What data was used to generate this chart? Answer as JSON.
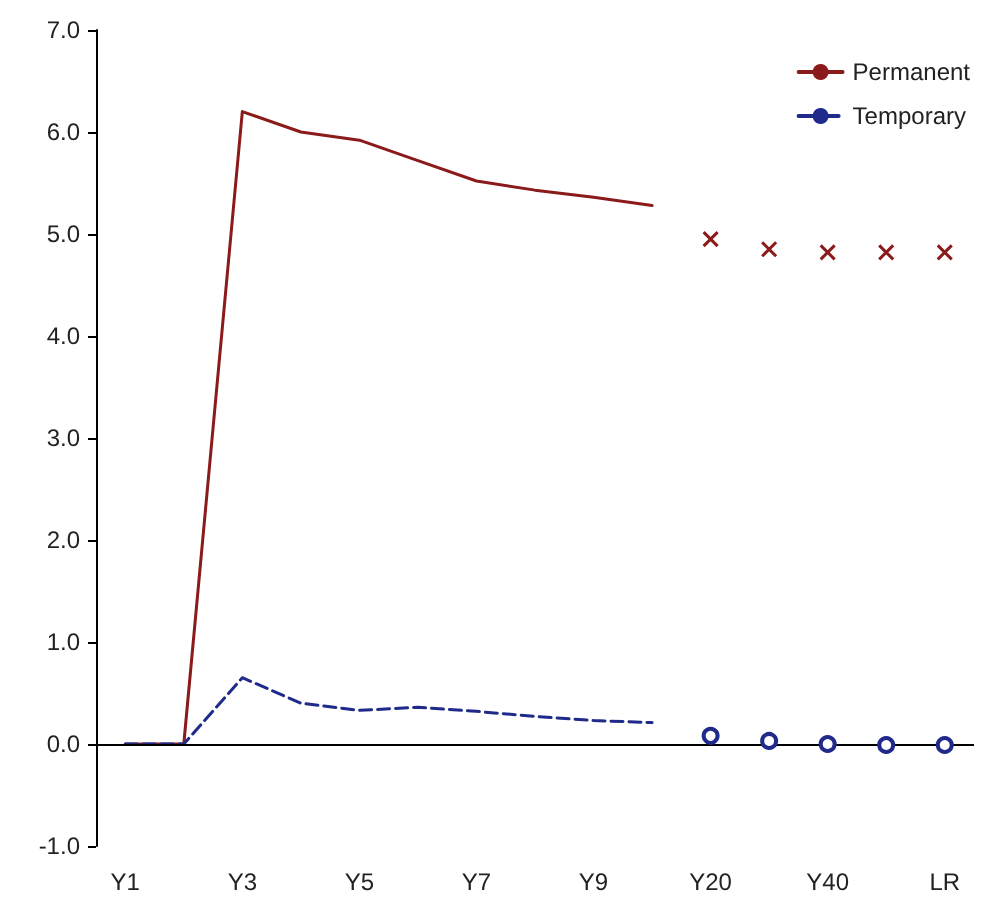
{
  "chart_data": {
    "type": "line",
    "categories": [
      "Y1",
      null,
      "Y3",
      null,
      "Y5",
      null,
      "Y7",
      null,
      "Y9",
      null,
      "Y20",
      null,
      "Y40",
      null,
      "LR"
    ],
    "series": [
      {
        "name": "Permanent",
        "color": "#8b1a1a",
        "line_style": "solid",
        "marker": "none",
        "values": [
          0,
          0,
          6.2,
          6.0,
          5.92,
          5.72,
          5.52,
          5.43,
          5.36,
          5.28,
          null,
          null,
          null,
          null,
          null
        ]
      },
      {
        "name": "Temporary",
        "color": "#1f2a8a",
        "line_style": "dashed",
        "marker": "none",
        "values": [
          0,
          0,
          0.65,
          0.4,
          0.33,
          0.36,
          0.32,
          0.27,
          0.23,
          0.21,
          null,
          null,
          null,
          null,
          null
        ]
      },
      {
        "type": "scatter",
        "color": "#8b1a1a",
        "marker": "cross",
        "values": [
          null,
          null,
          null,
          null,
          null,
          null,
          null,
          null,
          null,
          null,
          4.95,
          4.85,
          4.82,
          4.82,
          4.82
        ]
      },
      {
        "type": "scatter",
        "color": "#1f2a8a",
        "marker": "circle",
        "values": [
          null,
          null,
          null,
          null,
          null,
          null,
          null,
          null,
          null,
          null,
          0.08,
          0.03,
          0.0,
          -0.01,
          -0.01
        ]
      }
    ],
    "ylim": [
      -1,
      7
    ],
    "yticks": [
      {
        "value": -1,
        "label": "-1.0"
      },
      {
        "value": 0,
        "label": "0.0"
      },
      {
        "value": 1,
        "label": "1.0"
      },
      {
        "value": 2,
        "label": "2.0"
      },
      {
        "value": 3,
        "label": "3.0"
      },
      {
        "value": 4,
        "label": "4.0"
      },
      {
        "value": 5,
        "label": "5.0"
      },
      {
        "value": 6,
        "label": "6.0"
      },
      {
        "value": 7,
        "label": "7.0"
      }
    ],
    "ref_lines": [
      {
        "axis": "y",
        "value": 0,
        "color": "#000000",
        "line_style": "solid"
      }
    ],
    "grid": false,
    "legend": "top right"
  }
}
